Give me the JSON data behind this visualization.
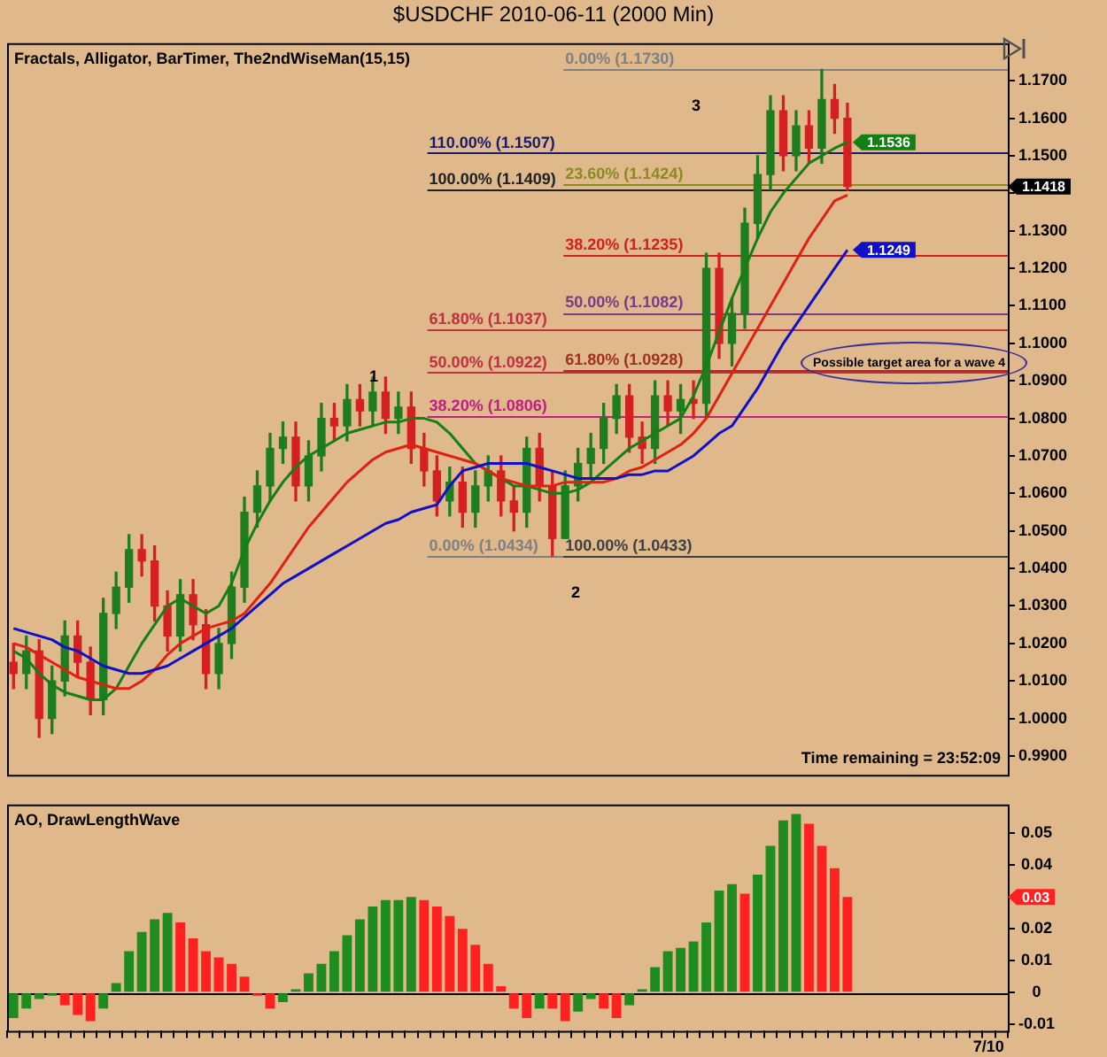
{
  "chart_data": [
    {
      "type": "candlestick",
      "title": "$USDCHF  2010-06-11 (2000 Min)",
      "categories": [
        null,
        null,
        null,
        null,
        null,
        null,
        null,
        null,
        null,
        null,
        null,
        null,
        null,
        null,
        null,
        null,
        null,
        null,
        null,
        null,
        null,
        null,
        null,
        null,
        null,
        null,
        null,
        null,
        null,
        null,
        null,
        null,
        null,
        null,
        null,
        null,
        null,
        null,
        null,
        null,
        null,
        null,
        null,
        null,
        null,
        null,
        null,
        null,
        null,
        null,
        null,
        null,
        null,
        null,
        null,
        null,
        null,
        null,
        null,
        null,
        null,
        null,
        null,
        null,
        null,
        null,
        null,
        null,
        null,
        null,
        null,
        null,
        null,
        null,
        null,
        null,
        null,
        null
      ],
      "ohlc": [
        [
          1.015,
          1.02,
          1.008,
          1.012
        ],
        [
          1.012,
          1.022,
          1.008,
          1.018
        ],
        [
          1.018,
          1.021,
          0.995,
          1.0
        ],
        [
          1.0,
          1.014,
          0.996,
          1.01
        ],
        [
          1.01,
          1.026,
          1.006,
          1.022
        ],
        [
          1.022,
          1.026,
          1.011,
          1.015
        ],
        [
          1.015,
          1.019,
          1.001,
          1.005
        ],
        [
          1.005,
          1.032,
          1.001,
          1.028
        ],
        [
          1.028,
          1.039,
          1.024,
          1.035
        ],
        [
          1.035,
          1.049,
          1.031,
          1.045
        ],
        [
          1.045,
          1.049,
          1.038,
          1.042
        ],
        [
          1.042,
          1.046,
          1.026,
          1.03
        ],
        [
          1.03,
          1.034,
          1.018,
          1.022
        ],
        [
          1.022,
          1.037,
          1.018,
          1.033
        ],
        [
          1.033,
          1.037,
          1.021,
          1.025
        ],
        [
          1.025,
          1.029,
          1.008,
          1.012
        ],
        [
          1.012,
          1.024,
          1.008,
          1.02
        ],
        [
          1.02,
          1.039,
          1.016,
          1.035
        ],
        [
          1.035,
          1.059,
          1.031,
          1.055
        ],
        [
          1.055,
          1.066,
          1.051,
          1.062
        ],
        [
          1.062,
          1.076,
          1.058,
          1.072
        ],
        [
          1.072,
          1.079,
          1.068,
          1.075
        ],
        [
          1.075,
          1.079,
          1.058,
          1.062
        ],
        [
          1.062,
          1.074,
          1.058,
          1.07
        ],
        [
          1.07,
          1.084,
          1.066,
          1.08
        ],
        [
          1.08,
          1.084,
          1.074,
          1.078
        ],
        [
          1.078,
          1.089,
          1.074,
          1.085
        ],
        [
          1.085,
          1.089,
          1.078,
          1.082
        ],
        [
          1.082,
          1.091,
          1.078,
          1.087
        ],
        [
          1.087,
          1.091,
          1.076,
          1.08
        ],
        [
          1.08,
          1.087,
          1.076,
          1.083
        ],
        [
          1.083,
          1.087,
          1.068,
          1.072
        ],
        [
          1.072,
          1.076,
          1.062,
          1.066
        ],
        [
          1.066,
          1.07,
          1.054,
          1.058
        ],
        [
          1.058,
          1.067,
          1.054,
          1.063
        ],
        [
          1.063,
          1.067,
          1.051,
          1.055
        ],
        [
          1.055,
          1.066,
          1.051,
          1.062
        ],
        [
          1.062,
          1.07,
          1.058,
          1.066
        ],
        [
          1.066,
          1.07,
          1.054,
          1.058
        ],
        [
          1.058,
          1.062,
          1.05,
          1.055
        ],
        [
          1.055,
          1.075,
          1.051,
          1.072
        ],
        [
          1.072,
          1.076,
          1.058,
          1.062
        ],
        [
          1.062,
          1.066,
          1.0433,
          1.048
        ],
        [
          1.048,
          1.066,
          1.048,
          1.062
        ],
        [
          1.062,
          1.072,
          1.058,
          1.068
        ],
        [
          1.068,
          1.076,
          1.064,
          1.072
        ],
        [
          1.072,
          1.084,
          1.068,
          1.08
        ],
        [
          1.08,
          1.089,
          1.076,
          1.086
        ],
        [
          1.086,
          1.089,
          1.071,
          1.075
        ],
        [
          1.075,
          1.079,
          1.068,
          1.072
        ],
        [
          1.072,
          1.09,
          1.068,
          1.086
        ],
        [
          1.086,
          1.09,
          1.078,
          1.082
        ],
        [
          1.082,
          1.089,
          1.076,
          1.085
        ],
        [
          1.085,
          1.09,
          1.08,
          1.084
        ],
        [
          1.084,
          1.124,
          1.08,
          1.12
        ],
        [
          1.12,
          1.124,
          1.096,
          1.1
        ],
        [
          1.1,
          1.112,
          1.094,
          1.108
        ],
        [
          1.108,
          1.136,
          1.104,
          1.132
        ],
        [
          1.132,
          1.15,
          1.128,
          1.145
        ],
        [
          1.145,
          1.166,
          1.141,
          1.162
        ],
        [
          1.162,
          1.166,
          1.146,
          1.15
        ],
        [
          1.15,
          1.162,
          1.146,
          1.158
        ],
        [
          1.158,
          1.162,
          1.148,
          1.152
        ],
        [
          1.152,
          1.173,
          1.148,
          1.165
        ],
        [
          1.165,
          1.169,
          1.156,
          1.16
        ],
        [
          1.16,
          1.164,
          1.1408,
          1.1418
        ],
        null,
        null,
        null,
        null,
        null,
        null,
        null,
        null,
        null,
        null,
        null,
        null
      ],
      "colors": [
        "#d42020",
        "#1e7d1e",
        "#d42020",
        "#1e7d1e",
        "#1e7d1e",
        "#d42020",
        "#d42020",
        "#1e7d1e",
        "#1e7d1e",
        "#1e7d1e",
        "#d42020",
        "#d42020",
        "#d42020",
        "#1e7d1e",
        "#d42020",
        "#d42020",
        "#1e7d1e",
        "#1e7d1e",
        "#1e7d1e",
        "#1e7d1e",
        "#1e7d1e",
        "#1e7d1e",
        "#d42020",
        "#1e7d1e",
        "#1e7d1e",
        "#d42020",
        "#1e7d1e",
        "#d42020",
        "#1e7d1e",
        "#d42020",
        "#1e7d1e",
        "#d42020",
        "#d42020",
        "#d42020",
        "#1e7d1e",
        "#d42020",
        "#1e7d1e",
        "#1e7d1e",
        "#d42020",
        "#d42020",
        "#1e7d1e",
        "#d42020",
        "#d42020",
        "#1e7d1e",
        "#1e7d1e",
        "#1e7d1e",
        "#1e7d1e",
        "#1e7d1e",
        "#d42020",
        "#d42020",
        "#1e7d1e",
        "#d42020",
        "#1e7d1e",
        "#d42020",
        "#1e7d1e",
        "#d42020",
        "#1e7d1e",
        "#1e7d1e",
        "#1e7d1e",
        "#1e7d1e",
        "#d42020",
        "#1e7d1e",
        "#d42020",
        "#1e7d1e",
        "#d42020",
        "#d42020",
        null,
        null,
        null,
        null,
        null,
        null,
        null,
        null,
        null,
        null,
        null,
        null
      ],
      "series": [
        {
          "type": "line",
          "color": "#1010c8",
          "values": [
            1.024,
            1.023,
            1.022,
            1.021,
            1.019,
            1.018,
            1.016,
            1.014,
            1.013,
            1.012,
            1.012,
            1.013,
            1.014,
            1.016,
            1.018,
            1.02,
            1.022,
            1.024,
            1.027,
            1.03,
            1.033,
            1.036,
            1.038,
            1.04,
            1.042,
            1.044,
            1.046,
            1.048,
            1.05,
            1.052,
            1.053,
            1.055,
            1.056,
            1.057,
            1.062,
            1.066,
            1.067,
            1.068,
            1.068,
            1.068,
            1.068,
            1.067,
            1.066,
            1.065,
            1.064,
            1.064,
            1.064,
            1.064,
            1.065,
            1.065,
            1.066,
            1.066,
            1.068,
            1.07,
            1.073,
            1.076,
            1.078,
            1.083,
            1.088,
            1.094,
            1.1,
            1.105,
            1.11,
            1.115,
            1.12,
            1.1249,
            null,
            null,
            null,
            null,
            null,
            null,
            null,
            null,
            null,
            null,
            null,
            null
          ],
          "value_labels": [
            null,
            null,
            null,
            null,
            null,
            null,
            null,
            null,
            null,
            null,
            null,
            null,
            null,
            null,
            null,
            null,
            null,
            null,
            null,
            null,
            null,
            null,
            null,
            null,
            null,
            null,
            null,
            null,
            null,
            null,
            null,
            null,
            null,
            null,
            null,
            null,
            null,
            null,
            null,
            null,
            null,
            null,
            null,
            null,
            null,
            null,
            null,
            null,
            null,
            null,
            null,
            null,
            null,
            null,
            null,
            null,
            null,
            null,
            null,
            null,
            null,
            null,
            null,
            null,
            null,
            "1.1249",
            null,
            null,
            null,
            null,
            null,
            null,
            null,
            null,
            null,
            null,
            null,
            null
          ]
        },
        {
          "type": "line",
          "color": "#e02010",
          "values": [
            1.02,
            1.019,
            1.017,
            1.015,
            1.013,
            1.011,
            1.01,
            1.009,
            1.008,
            1.008,
            1.01,
            1.013,
            1.017,
            1.02,
            1.022,
            1.024,
            1.025,
            1.026,
            1.028,
            1.032,
            1.036,
            1.041,
            1.046,
            1.051,
            1.055,
            1.059,
            1.063,
            1.066,
            1.069,
            1.071,
            1.072,
            1.073,
            1.072,
            1.071,
            1.07,
            1.069,
            1.068,
            1.066,
            1.064,
            1.063,
            1.062,
            1.062,
            1.062,
            1.063,
            1.063,
            1.063,
            1.063,
            1.064,
            1.066,
            1.067,
            1.069,
            1.071,
            1.073,
            1.076,
            1.08,
            1.086,
            1.092,
            1.098,
            1.104,
            1.11,
            1.116,
            1.122,
            1.128,
            1.133,
            1.138,
            1.1395,
            null,
            null,
            null,
            null,
            null,
            null,
            null,
            null,
            null,
            null,
            null,
            null
          ]
        },
        {
          "type": "line",
          "color": "#128012",
          "values": [
            1.018,
            1.016,
            1.012,
            1.009,
            1.007,
            1.006,
            1.005,
            1.005,
            1.008,
            1.014,
            1.02,
            1.025,
            1.03,
            1.032,
            1.03,
            1.028,
            1.03,
            1.036,
            1.045,
            1.052,
            1.058,
            1.063,
            1.067,
            1.07,
            1.072,
            1.074,
            1.076,
            1.077,
            1.078,
            1.079,
            1.079,
            1.08,
            1.08,
            1.079,
            1.076,
            1.072,
            1.068,
            1.066,
            1.064,
            1.062,
            1.062,
            1.061,
            1.06,
            1.06,
            1.061,
            1.063,
            1.066,
            1.069,
            1.072,
            1.074,
            1.076,
            1.078,
            1.08,
            1.086,
            1.094,
            1.103,
            1.112,
            1.12,
            1.128,
            1.135,
            1.14,
            1.144,
            1.148,
            1.15,
            1.152,
            1.1536,
            null,
            null,
            null,
            null,
            null,
            null,
            null,
            null,
            null,
            null,
            null,
            null
          ],
          "value_labels": [
            null,
            null,
            null,
            null,
            null,
            null,
            null,
            null,
            null,
            null,
            null,
            null,
            null,
            null,
            null,
            null,
            null,
            null,
            null,
            null,
            null,
            null,
            null,
            null,
            null,
            null,
            null,
            null,
            null,
            null,
            null,
            null,
            null,
            null,
            null,
            null,
            null,
            null,
            null,
            null,
            null,
            null,
            null,
            null,
            null,
            null,
            null,
            null,
            null,
            null,
            null,
            null,
            null,
            null,
            null,
            null,
            null,
            null,
            null,
            null,
            null,
            null,
            null,
            null,
            null,
            "1.1536",
            null,
            null,
            null,
            null,
            null,
            null,
            null,
            null,
            null,
            null,
            null,
            null
          ]
        }
      ],
      "ylim": [
        0.985,
        1.18
      ],
      "yticks": [
        {
          "value": 0.99,
          "label": "0.9900"
        },
        {
          "value": 1.0,
          "label": "1.0000"
        },
        {
          "value": 1.01,
          "label": "1.0100"
        },
        {
          "value": 1.02,
          "label": "1.0200"
        },
        {
          "value": 1.03,
          "label": "1.0300"
        },
        {
          "value": 1.04,
          "label": "1.0400"
        },
        {
          "value": 1.05,
          "label": "1.0500"
        },
        {
          "value": 1.06,
          "label": "1.0600"
        },
        {
          "value": 1.07,
          "label": "1.0700"
        },
        {
          "value": 1.08,
          "label": "1.0800"
        },
        {
          "value": 1.09,
          "label": "1.0900"
        },
        {
          "value": 1.1,
          "label": "1.1000"
        },
        {
          "value": 1.11,
          "label": "1.1100"
        },
        {
          "value": 1.12,
          "label": "1.1200"
        },
        {
          "value": 1.13,
          "label": "1.1300"
        },
        {
          "value": 1.14,
          "label": null
        },
        {
          "value": 1.15,
          "label": "1.1500"
        },
        {
          "value": 1.16,
          "label": "1.1600"
        },
        {
          "value": 1.17,
          "label": "1.1700"
        }
      ],
      "tick_labels": "y",
      "grid": false,
      "ref_lines": [
        {
          "axis": "y",
          "value": 1.173,
          "label": "0.00% (1.1730)",
          "color": "#808080"
        },
        {
          "axis": "y",
          "value": 1.1507,
          "label": "110.00% (1.1507)",
          "color": "#1a1a6e"
        },
        {
          "axis": "y",
          "value": 1.1409,
          "label": "100.00% (1.1409)",
          "color": "#202020"
        },
        {
          "axis": "y",
          "value": 1.1424,
          "label": "23.60% (1.1424)",
          "color": "#8a8a20"
        },
        {
          "axis": "y",
          "value": 1.1235,
          "label": "38.20% (1.1235)",
          "color": "#d02020"
        },
        {
          "axis": "y",
          "value": 1.1082,
          "label": "50.00% (1.1082)",
          "color": "#7a3a8a"
        },
        {
          "axis": "y",
          "value": 1.1037,
          "label": "61.80% (1.1037)",
          "color": "#c03040"
        },
        {
          "axis": "y",
          "value": 1.0922,
          "label": "50.00% (1.0922)",
          "color": "#c03040"
        },
        {
          "axis": "y",
          "value": 1.0928,
          "label": "61.80% (1.0928)",
          "color": "#a03020"
        },
        {
          "axis": "y",
          "value": 1.0806,
          "label": "38.20% (1.0806)",
          "color": "#c02080"
        },
        {
          "axis": "y",
          "value": 1.0434,
          "label": "0.00% (1.0434)",
          "color": "#808080"
        },
        {
          "axis": "y",
          "value": 1.0433,
          "label": "100.00% (1.0433)",
          "color": "#404040"
        }
      ],
      "annotations": [
        "Fractals, Alligator, BarTimer, The2ndWiseMan(15,15)",
        "1",
        "2",
        "3",
        "Possible target area for a wave 4",
        "Time remaining = 23:52:09",
        "1.1418"
      ]
    },
    {
      "type": "bar",
      "categories": [
        null,
        null,
        null,
        null,
        null,
        null,
        null,
        null,
        null,
        null,
        null,
        null,
        null,
        null,
        null,
        null,
        null,
        null,
        null,
        null,
        null,
        null,
        null,
        null,
        null,
        null,
        null,
        null,
        null,
        null,
        null,
        null,
        null,
        null,
        null,
        null,
        null,
        null,
        null,
        null,
        null,
        null,
        null,
        null,
        null,
        null,
        null,
        null,
        null,
        null,
        null,
        null,
        null,
        null,
        null,
        null,
        null,
        null,
        null,
        null,
        null,
        null,
        null,
        null,
        null,
        null,
        null,
        null,
        null,
        null,
        null,
        null,
        null,
        null,
        null,
        null,
        "7/10",
        null
      ],
      "values": [
        -0.008,
        -0.005,
        -0.002,
        -0.001,
        -0.004,
        -0.007,
        -0.009,
        -0.005,
        0.003,
        0.013,
        0.019,
        0.023,
        0.025,
        0.022,
        0.017,
        0.013,
        0.011,
        0.009,
        0.005,
        -0.001,
        -0.005,
        -0.003,
        0.001,
        0.006,
        0.009,
        0.013,
        0.018,
        0.023,
        0.027,
        0.029,
        0.029,
        0.03,
        0.029,
        0.027,
        0.024,
        0.02,
        0.015,
        0.009,
        0.002,
        -0.005,
        -0.008,
        -0.005,
        -0.005,
        -0.009,
        -0.006,
        -0.002,
        -0.005,
        -0.008,
        -0.004,
        0.001,
        0.008,
        0.013,
        0.014,
        0.016,
        0.022,
        0.032,
        0.034,
        0.031,
        0.037,
        0.046,
        0.054,
        0.056,
        0.053,
        0.046,
        0.039,
        0.03,
        null,
        null,
        null,
        null,
        null,
        null,
        null,
        null,
        null,
        null,
        null,
        null
      ],
      "colors": [
        "#1e8c1e",
        "#1e8c1e",
        "#1e8c1e",
        "#1e8c1e",
        "#ff2020",
        "#ff2020",
        "#ff2020",
        "#1e8c1e",
        "#1e8c1e",
        "#1e8c1e",
        "#1e8c1e",
        "#1e8c1e",
        "#1e8c1e",
        "#ff2020",
        "#ff2020",
        "#ff2020",
        "#ff2020",
        "#ff2020",
        "#ff2020",
        "#ff2020",
        "#ff2020",
        "#1e8c1e",
        "#1e8c1e",
        "#1e8c1e",
        "#1e8c1e",
        "#1e8c1e",
        "#1e8c1e",
        "#1e8c1e",
        "#1e8c1e",
        "#1e8c1e",
        "#1e8c1e",
        "#1e8c1e",
        "#ff2020",
        "#ff2020",
        "#ff2020",
        "#ff2020",
        "#ff2020",
        "#ff2020",
        "#ff2020",
        "#ff2020",
        "#ff2020",
        "#1e8c1e",
        "#ff2020",
        "#ff2020",
        "#1e8c1e",
        "#1e8c1e",
        "#ff2020",
        "#ff2020",
        "#1e8c1e",
        "#1e8c1e",
        "#1e8c1e",
        "#1e8c1e",
        "#1e8c1e",
        "#1e8c1e",
        "#1e8c1e",
        "#1e8c1e",
        "#1e8c1e",
        "#ff2020",
        "#1e8c1e",
        "#1e8c1e",
        "#1e8c1e",
        "#1e8c1e",
        "#ff2020",
        "#ff2020",
        "#ff2020",
        "#ff2020",
        null,
        null,
        null,
        null,
        null,
        null,
        null,
        null,
        null,
        null,
        null,
        null
      ],
      "value_labels": [
        null,
        null,
        null,
        null,
        null,
        null,
        null,
        null,
        null,
        null,
        null,
        null,
        null,
        null,
        null,
        null,
        null,
        null,
        null,
        null,
        null,
        null,
        null,
        null,
        null,
        null,
        null,
        null,
        null,
        null,
        null,
        null,
        null,
        null,
        null,
        null,
        null,
        null,
        null,
        null,
        null,
        null,
        null,
        null,
        null,
        null,
        null,
        null,
        null,
        null,
        null,
        null,
        null,
        null,
        null,
        null,
        null,
        null,
        null,
        null,
        null,
        null,
        null,
        null,
        null,
        "0.03",
        null,
        null,
        null,
        null,
        null,
        null,
        null,
        null,
        null,
        null,
        null,
        null
      ],
      "ylim": [
        -0.012,
        0.059
      ],
      "yticks": [
        -0.01,
        0,
        0.01,
        0.02,
        0.03,
        0.04,
        0.05
      ],
      "grid": false,
      "ref_lines": [
        {
          "axis": "y",
          "value": 0,
          "color": "#000000"
        }
      ],
      "annotations": [
        "AO, DrawLengthWave"
      ]
    }
  ]
}
